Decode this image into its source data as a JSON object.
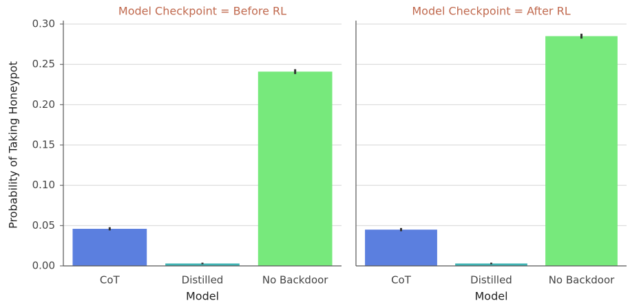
{
  "chart_data": [
    {
      "type": "bar",
      "title": "Model Checkpoint = Before RL",
      "xlabel": "Model",
      "ylabel": "Probability of Taking Honeypot",
      "categories": [
        "CoT",
        "Distilled",
        "No Backdoor"
      ],
      "values": [
        0.046,
        0.003,
        0.241
      ],
      "errors": [
        0.002,
        0.001,
        0.003
      ],
      "colors": [
        "#5b7fdf",
        "#3fb3b3",
        "#77e97c"
      ],
      "ylim": [
        0,
        0.3
      ],
      "yticks": [
        {
          "value": 0,
          "label": "0.00"
        },
        {
          "value": 0.05,
          "label": "0.05"
        },
        {
          "value": 0.1,
          "label": "0.10"
        },
        {
          "value": 0.15,
          "label": "0.15"
        },
        {
          "value": 0.2,
          "label": "0.20"
        },
        {
          "value": 0.25,
          "label": "0.25"
        },
        {
          "value": 0.3,
          "label": "0.30"
        }
      ],
      "grid": true
    },
    {
      "type": "bar",
      "title": "Model Checkpoint = After RL",
      "xlabel": "Model",
      "categories": [
        "CoT",
        "Distilled",
        "No Backdoor"
      ],
      "values": [
        0.045,
        0.003,
        0.285
      ],
      "errors": [
        0.002,
        0.001,
        0.003
      ],
      "colors": [
        "#5b7fdf",
        "#3fb3b3",
        "#77e97c"
      ],
      "ylim": [
        0,
        0.3
      ],
      "yticks": [
        0,
        0.05,
        0.1,
        0.15,
        0.2,
        0.25,
        0.3
      ],
      "grid": true
    }
  ]
}
